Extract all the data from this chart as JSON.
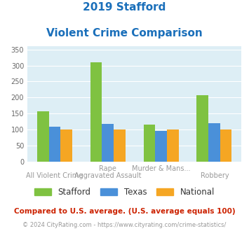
{
  "title_line1": "2019 Stafford",
  "title_line2": "Violent Crime Comparison",
  "title_color": "#1a6fba",
  "top_labels": [
    "",
    "Rape",
    "Murder & Mans...",
    ""
  ],
  "bottom_labels": [
    "All Violent Crime",
    "Aggravated Assault",
    "",
    "Robbery"
  ],
  "stafford_values": [
    157,
    310,
    115,
    208
  ],
  "texas_values": [
    110,
    118,
    97,
    120
  ],
  "national_values": [
    100,
    100,
    100,
    100
  ],
  "stafford_color": "#7fc241",
  "texas_color": "#4a90d9",
  "national_color": "#f5a623",
  "ylim": [
    0,
    360
  ],
  "yticks": [
    0,
    50,
    100,
    150,
    200,
    250,
    300,
    350
  ],
  "legend_labels": [
    "Stafford",
    "Texas",
    "National"
  ],
  "footnote1": "Compared to U.S. average. (U.S. average equals 100)",
  "footnote2": "© 2024 CityRating.com - https://www.cityrating.com/crime-statistics/",
  "footnote1_color": "#cc2200",
  "footnote2_color": "#999999",
  "url_color": "#4a90d9",
  "bg_color": "#ddeef5",
  "bar_width": 0.22
}
